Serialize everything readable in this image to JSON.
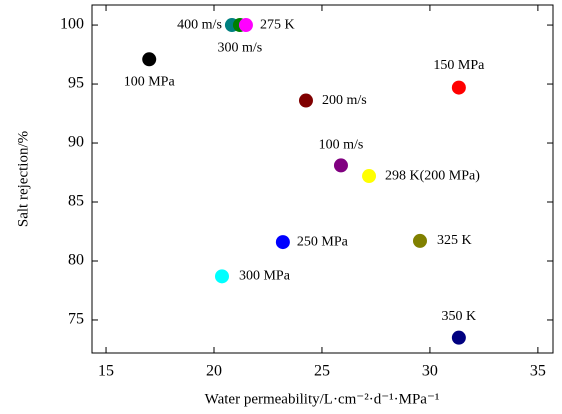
{
  "chart_data": {
    "type": "scatter",
    "x_label": "Water permeability/L·cm⁻²·d⁻¹·MPa⁻¹",
    "y_label": "Salt rejection/%",
    "x": [
      17.0,
      20.83,
      21.2,
      21.48,
      24.26,
      31.34,
      25.88,
      27.18,
      29.54,
      23.19,
      20.37,
      31.34
    ],
    "values": [
      97.1,
      100,
      100,
      100,
      93.6,
      94.7,
      88.1,
      87.2,
      81.7,
      81.6,
      78.7,
      73.5
    ],
    "labels": [
      "100 MPa",
      "400 m/s",
      "300 m/s",
      "275 K",
      "200 m/s",
      "150 MPa",
      "100 m/s",
      "298 K(200 MPa)",
      "325 K",
      "250 MPa",
      "300 MPa",
      "350 K"
    ],
    "colors": [
      "#000000",
      "#008080",
      "#008000",
      "#ff00ff",
      "#800000",
      "#ff0000",
      "#800080",
      "#ffff00",
      "#808000",
      "#0000ff",
      "#00ffff",
      "#000080"
    ],
    "xlim": [
      14.35,
      35.7
    ],
    "xticks": [
      15,
      20,
      25,
      30,
      35
    ],
    "ylim": [
      72.2,
      101.7
    ],
    "yticks": [
      75,
      80,
      85,
      90,
      95,
      100
    ]
  }
}
